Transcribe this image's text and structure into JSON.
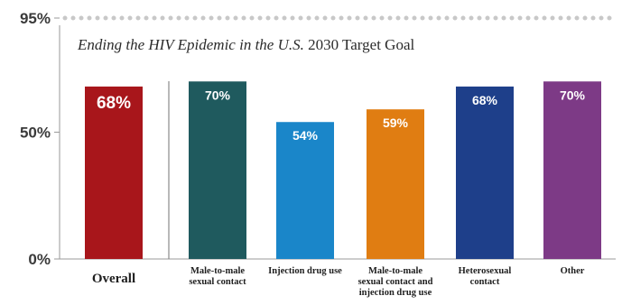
{
  "chart_data": {
    "type": "bar",
    "title": "Ending the HIV Epidemic in the U.S. 2030 Target Goal",
    "title_italic": "Ending the HIV Epidemic in the U.S.",
    "title_rest": " 2030 Target Goal",
    "xlabel": "",
    "ylabel": "",
    "ylim": [
      0,
      95
    ],
    "yticks": [
      {
        "value": 95,
        "label": "95%"
      },
      {
        "value": 50,
        "label": "50%"
      },
      {
        "value": 0,
        "label": "0%"
      }
    ],
    "target_line_value": 95,
    "grid": false,
    "categories": [
      [
        "Overall"
      ],
      [
        "Male-to-male",
        "sexual contact"
      ],
      [
        "Injection drug use"
      ],
      [
        "Male-to-male",
        "sexual contact and",
        "injection drug use"
      ],
      [
        "Heterosexual",
        "contact"
      ],
      [
        "Other"
      ]
    ],
    "values": [
      68,
      70,
      54,
      59,
      68,
      70
    ],
    "value_labels": [
      "68%",
      "70%",
      "54%",
      "59%",
      "68%",
      "70%"
    ],
    "colors": [
      "#a8161b",
      "#1f5a5e",
      "#1a86c9",
      "#e07d12",
      "#1e3f8a",
      "#7d3a86"
    ],
    "target_line_color": "#c8c8c8",
    "separator_after_first": true
  }
}
